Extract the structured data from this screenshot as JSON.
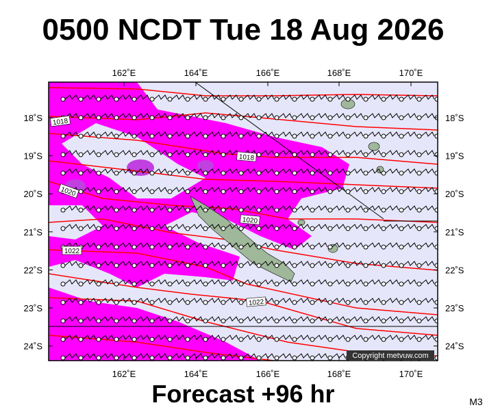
{
  "header": {
    "title": "0500 NCDT Tue 18 Aug 2026"
  },
  "map": {
    "longitude_labels": [
      "162˚E",
      "164˚E",
      "166˚E",
      "168˚E",
      "170˚E"
    ],
    "latitude_labels": [
      "18˚S",
      "19˚S",
      "20˚S",
      "21˚S",
      "22˚S",
      "23˚S",
      "24˚S"
    ],
    "isobar_labels": [
      "1018",
      "1018",
      "1020",
      "1020",
      "1022",
      "1022"
    ],
    "copyright": "Copyright metvuw.com"
  },
  "footer": {
    "forecast": "Forecast +96 hr",
    "code": "M3"
  }
}
